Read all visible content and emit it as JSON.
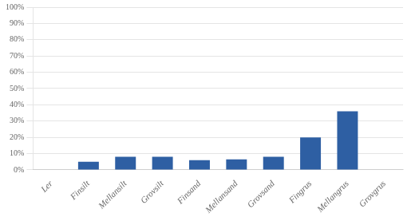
{
  "chart_data": {
    "type": "bar",
    "categories": [
      "Ler",
      "Finsilt",
      "Mellansilt",
      "Grovsilt",
      "Finsand",
      "Mellansand",
      "Grovsand",
      "Fingrus",
      "Mellangrus",
      "Grovgrus"
    ],
    "values": [
      0,
      5,
      8,
      8,
      6,
      6.5,
      8,
      20,
      36,
      0
    ],
    "color": "#2E5FA3",
    "ylim": [
      0,
      100
    ],
    "yticks": [
      {
        "value": 0,
        "label": "0%"
      },
      {
        "value": 10,
        "label": "10%"
      },
      {
        "value": 20,
        "label": "20%"
      },
      {
        "value": 30,
        "label": "30%"
      },
      {
        "value": 40,
        "label": "40%"
      },
      {
        "value": 50,
        "label": "50%"
      },
      {
        "value": 60,
        "label": "60%"
      },
      {
        "value": 70,
        "label": "70%"
      },
      {
        "value": 80,
        "label": "80%"
      },
      {
        "value": 90,
        "label": "90%"
      },
      {
        "value": 100,
        "label": "100%"
      }
    ],
    "grid": "y"
  }
}
